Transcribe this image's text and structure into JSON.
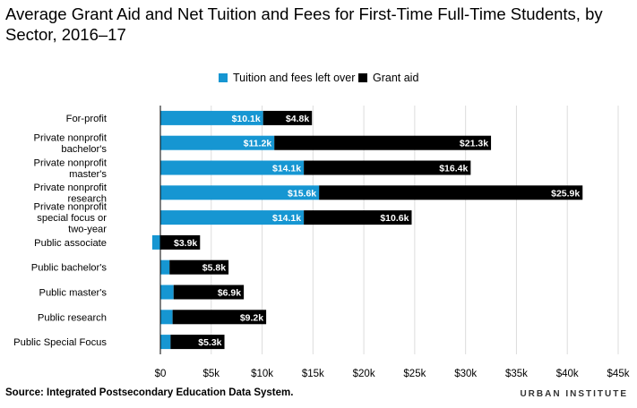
{
  "title": "Average Grant Aid and Net Tuition and Fees for First-Time Full-Time Students, by Sector, 2016–17",
  "source": "Source: Integrated Postsecondary Education Data System.",
  "brand": "URBAN INSTITUTE",
  "colors": {
    "tuition": "#1696d2",
    "grant": "#000000",
    "grid": "#dcdcdc",
    "axis": "#000000"
  },
  "chart_data": {
    "type": "bar",
    "orientation": "horizontal",
    "stacked": true,
    "categories": [
      [
        "For-profit"
      ],
      [
        "Private nonprofit",
        "bachelor's"
      ],
      [
        "Private nonprofit",
        "master's"
      ],
      [
        "Private nonprofit",
        "research"
      ],
      [
        "Private nonprofit",
        "special focus or",
        "two-year"
      ],
      [
        "Public associate"
      ],
      [
        "Public bachelor's"
      ],
      [
        "Public master's"
      ],
      [
        "Public research"
      ],
      [
        "Public Special Focus"
      ]
    ],
    "series": [
      {
        "name": "Tuition and fees left over",
        "color": "#1696d2",
        "values": [
          10.1,
          11.2,
          14.1,
          15.6,
          14.1,
          -0.8,
          0.9,
          1.3,
          1.2,
          1.0
        ],
        "labels": [
          "$10.1k",
          "$11.2k",
          "$14.1k",
          "$15.6k",
          "$14.1k",
          "",
          "",
          "",
          "",
          ""
        ]
      },
      {
        "name": "Grant aid",
        "color": "#000000",
        "values": [
          4.8,
          21.3,
          16.4,
          25.9,
          10.6,
          3.9,
          5.8,
          6.9,
          9.2,
          5.3
        ],
        "labels": [
          "$4.8k",
          "$21.3k",
          "$16.4k",
          "$25.9k",
          "$10.6k",
          "$3.9k",
          "$5.8k",
          "$6.9k",
          "$9.2k",
          "$5.3k"
        ]
      }
    ],
    "xlim": [
      0,
      45
    ],
    "xticks": [
      0,
      5,
      10,
      15,
      20,
      25,
      30,
      35,
      40,
      45
    ],
    "xtick_labels": [
      "$0",
      "$5k",
      "$10k",
      "$15k",
      "$20k",
      "$25k",
      "$30k",
      "$35k",
      "$40k",
      "$45k"
    ],
    "grid": true,
    "legend_position": "top-center"
  }
}
